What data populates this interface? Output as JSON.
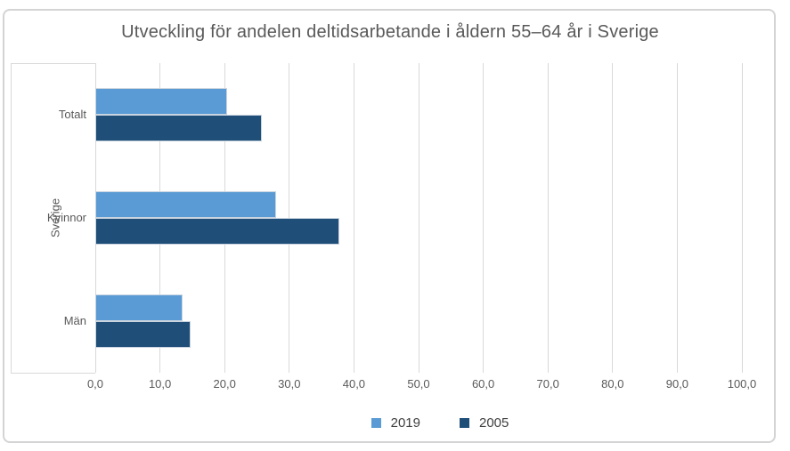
{
  "chart_data": {
    "type": "bar",
    "orientation": "horizontal",
    "title": "Utveckling för andelen deltidsarbetande i åldern 55–64 år i Sverige",
    "axis_group_label": "Sverige",
    "categories": [
      "Totalt",
      "Kvinnor",
      "Män"
    ],
    "series": [
      {
        "name": "2019",
        "color": "#5b9bd5",
        "values": [
          20.4,
          28.0,
          13.5
        ]
      },
      {
        "name": "2005",
        "color": "#1f4e79",
        "values": [
          25.7,
          37.7,
          14.7
        ]
      }
    ],
    "xlim": [
      0,
      100
    ],
    "x_ticks": [
      0,
      10,
      20,
      30,
      40,
      50,
      60,
      70,
      80,
      90,
      100
    ],
    "x_tick_labels": [
      "0,0",
      "10,0",
      "20,0",
      "30,0",
      "40,0",
      "50,0",
      "60,0",
      "70,0",
      "80,0",
      "90,0",
      "100,0"
    ],
    "grid": true,
    "legend_position": "bottom"
  },
  "colors": {
    "bar_2019": "#5b9bd5",
    "bar_2005": "#1f4e79",
    "gridline": "#d9d9d9",
    "axis_text": "#595959",
    "legend_text": "#404040",
    "figure_border": "#d4d4d4",
    "bar_outline": "#c9d4df"
  }
}
